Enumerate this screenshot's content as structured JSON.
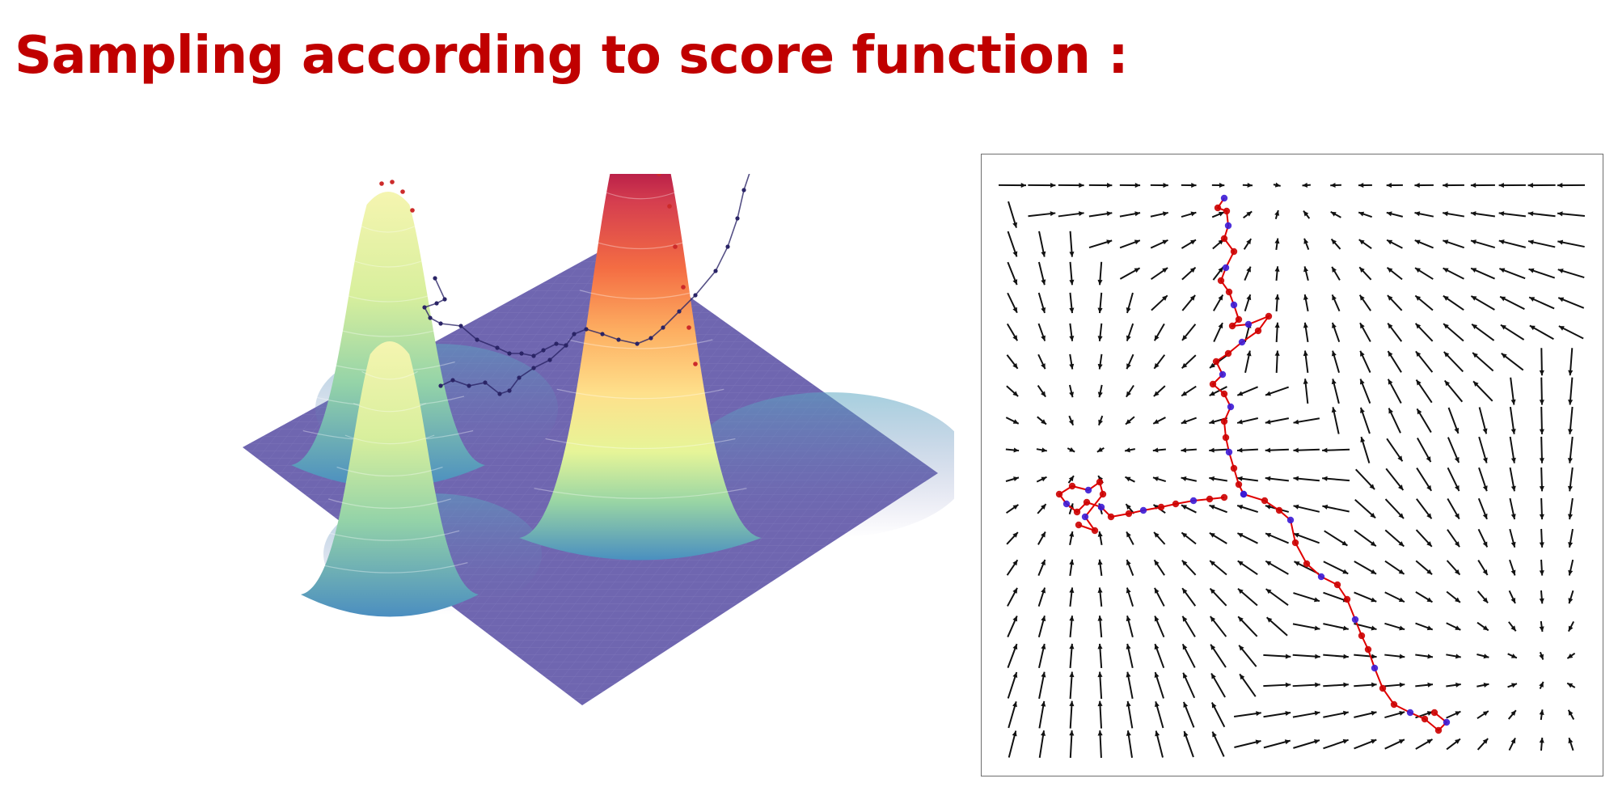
{
  "slide": {
    "title": "Sampling according to score function :",
    "title_color": "#c00000"
  },
  "surface_plot": {
    "description_icon": "density-surface-3d",
    "base_color": "#6f66b0",
    "colormap": [
      "#5b4ea3",
      "#3f8fb9",
      "#7fc8a9",
      "#d9ef9a",
      "#fee08b",
      "#f9a15a",
      "#d53e4f",
      "#9e0142"
    ],
    "trajectory_color": "#2a2466",
    "peaks": [
      "left-upper",
      "left-lower",
      "right-tall"
    ]
  },
  "vector_field_plot": {
    "arrow_color": "#111111",
    "trajectory_color": "#e00000",
    "point_colors": [
      "#3b1bd6",
      "#cc0000"
    ],
    "frame_color": "#6e6e6e"
  }
}
